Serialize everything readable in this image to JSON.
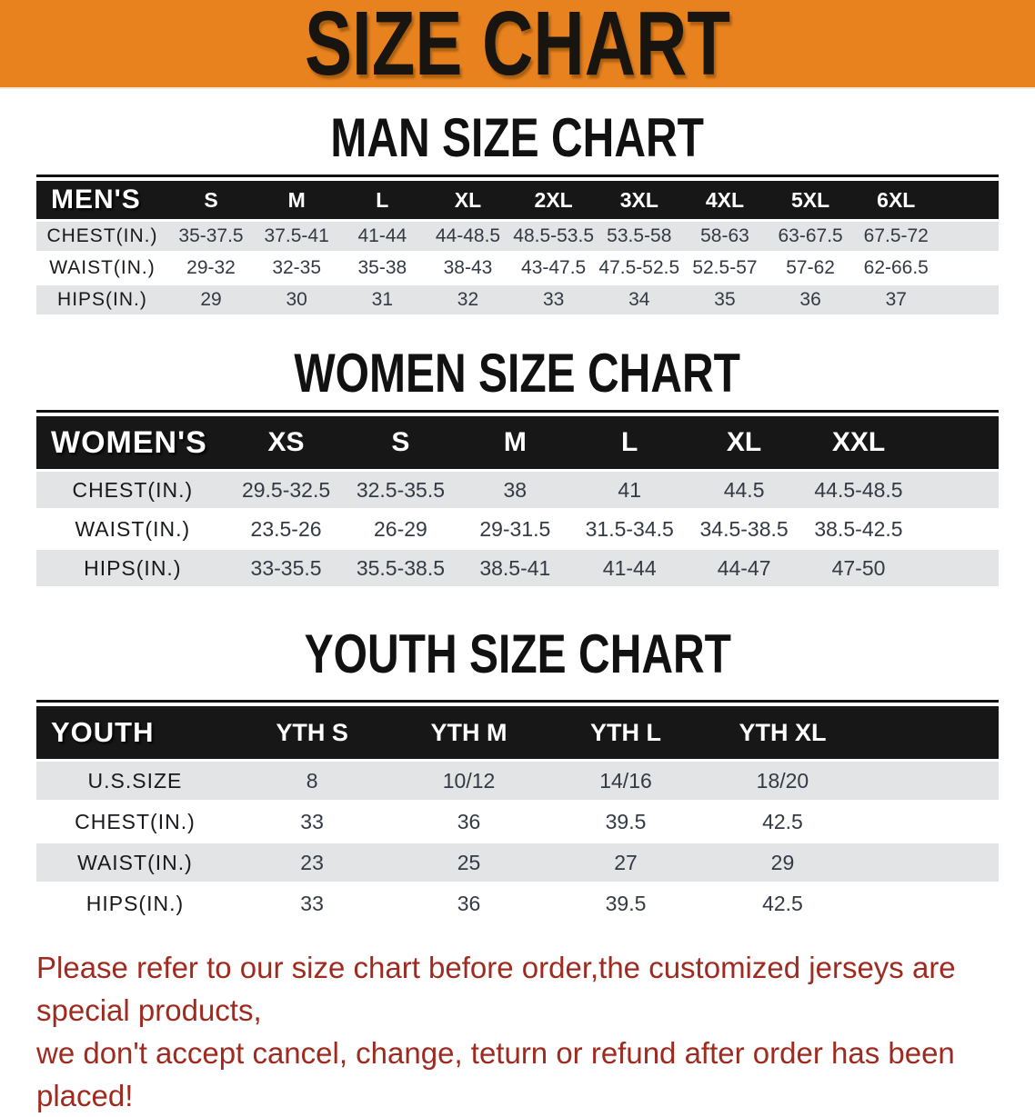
{
  "banner": {
    "title": "SIZE CHART",
    "bg_color": "#E8821E",
    "text_color": "#181410"
  },
  "colors": {
    "header_bar": "#171717",
    "stripe_gray": "#E3E4E6",
    "footer_red": "#9F2A20"
  },
  "sections": [
    {
      "id": "mens",
      "heading": "MAN SIZE CHART",
      "corner": "MEN'S",
      "columns": [
        "S",
        "M",
        "L",
        "XL",
        "2XL",
        "3XL",
        "4XL",
        "5XL",
        "6XL"
      ],
      "rows": [
        {
          "label": "CHEST(IN.)",
          "values": [
            "35-37.5",
            "37.5-41",
            "41-44",
            "44-48.5",
            "48.5-53.5",
            "53.5-58",
            "58-63",
            "63-67.5",
            "67.5-72"
          ]
        },
        {
          "label": "WAIST(IN.)",
          "values": [
            "29-32",
            "32-35",
            "35-38",
            "38-43",
            "43-47.5",
            "47.5-52.5",
            "52.5-57",
            "57-62",
            "62-66.5"
          ]
        },
        {
          "label": "HIPS(IN.)",
          "values": [
            "29",
            "30",
            "31",
            "32",
            "33",
            "34",
            "35",
            "36",
            "37"
          ]
        }
      ]
    },
    {
      "id": "womens",
      "heading": "WOMEN SIZE CHART",
      "corner": "WOMEN'S",
      "columns": [
        "XS",
        "S",
        "M",
        "L",
        "XL",
        "XXL"
      ],
      "rows": [
        {
          "label": "CHEST(IN.)",
          "values": [
            "29.5-32.5",
            "32.5-35.5",
            "38",
            "41",
            "44.5",
            "44.5-48.5"
          ]
        },
        {
          "label": "WAIST(IN.)",
          "values": [
            "23.5-26",
            "26-29",
            "29-31.5",
            "31.5-34.5",
            "34.5-38.5",
            "38.5-42.5"
          ]
        },
        {
          "label": "HIPS(IN.)",
          "values": [
            "33-35.5",
            "35.5-38.5",
            "38.5-41",
            "41-44",
            "44-47",
            "47-50"
          ]
        }
      ]
    },
    {
      "id": "youth",
      "heading": "YOUTH SIZE CHART",
      "corner": "YOUTH",
      "columns": [
        "YTH S",
        "YTH M",
        "YTH L",
        "YTH XL"
      ],
      "rows": [
        {
          "label": "U.S.SIZE",
          "values": [
            "8",
            "10/12",
            "14/16",
            "18/20"
          ]
        },
        {
          "label": "CHEST(IN.)",
          "values": [
            "33",
            "36",
            "39.5",
            "42.5"
          ]
        },
        {
          "label": "WAIST(IN.)",
          "values": [
            "23",
            "25",
            "27",
            "29"
          ]
        },
        {
          "label": "HIPS(IN.)",
          "values": [
            "33",
            "36",
            "39.5",
            "42.5"
          ]
        }
      ]
    }
  ],
  "footer": {
    "line1": "Please refer to our size chart before order,the customized jerseys are special products,",
    "line2": "we don't accept cancel, change, teturn or refund after order has been placed!"
  }
}
